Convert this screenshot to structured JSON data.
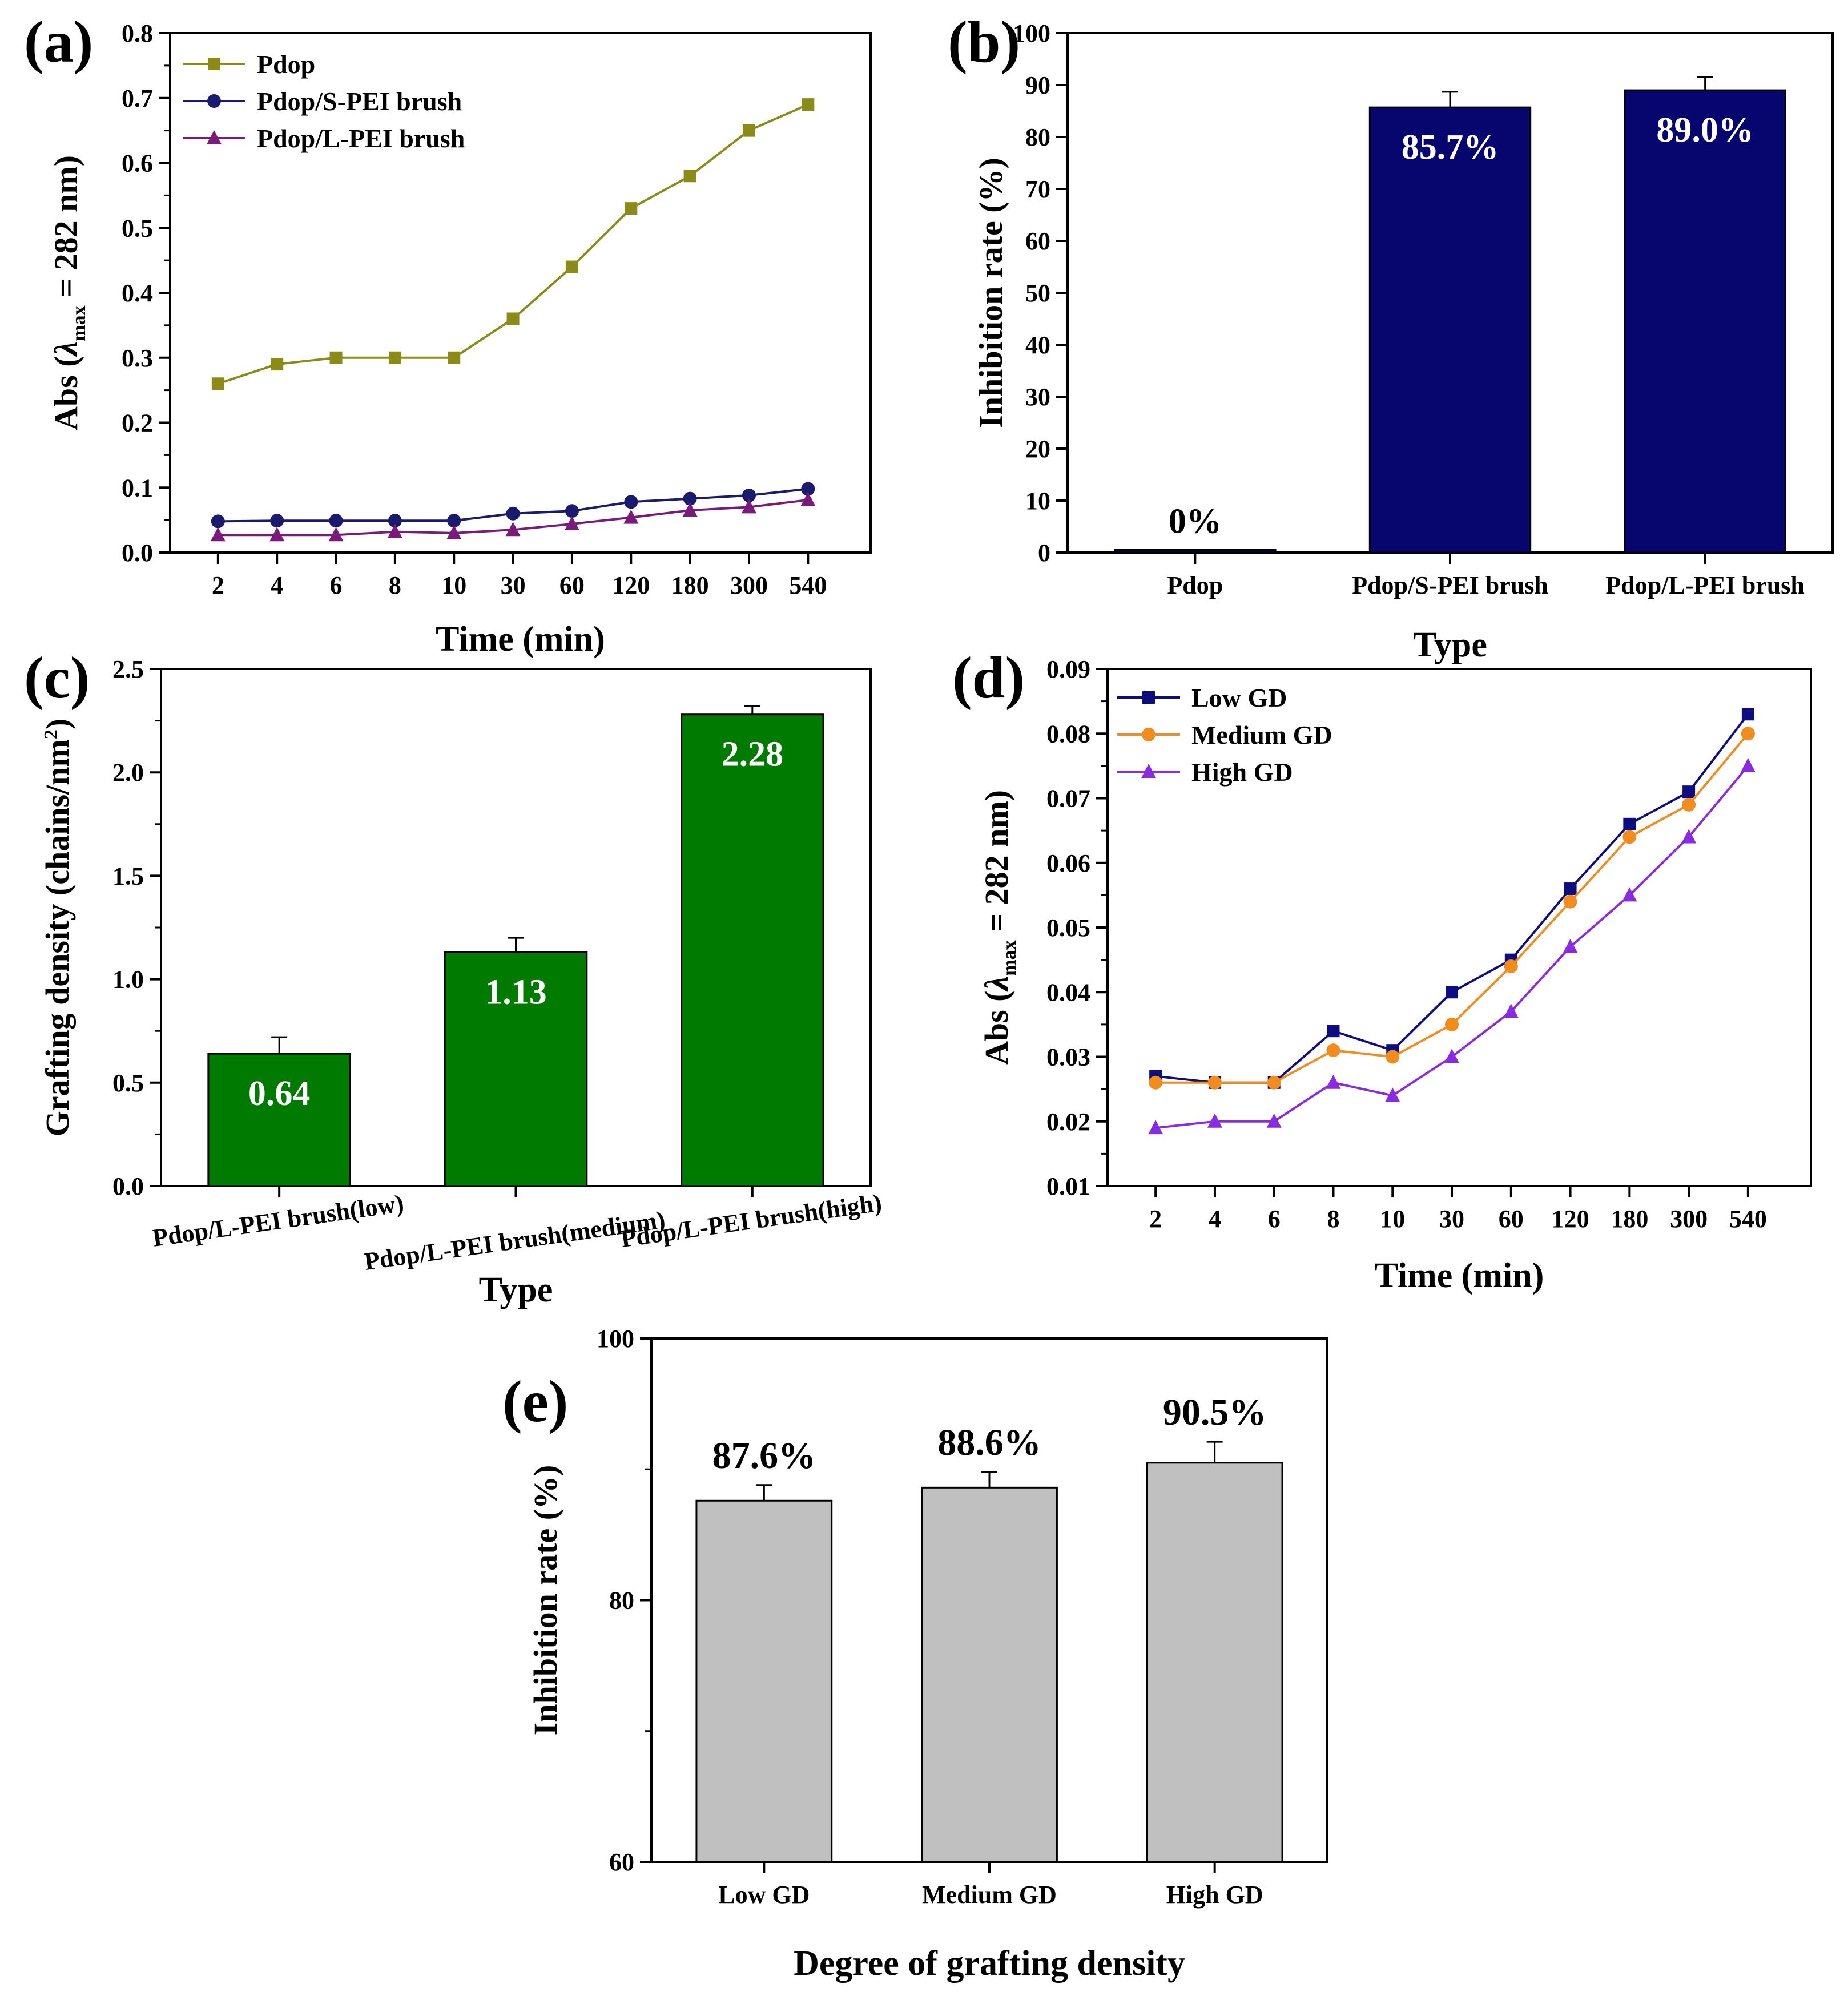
{
  "chart_data": [
    {
      "id": "a",
      "panel_label": "(a)",
      "type": "line",
      "title": "",
      "xlabel": "Time (min)",
      "ylabel_prefix": "Abs (",
      "ylabel_lambda": "λ",
      "ylabel_sub": "max",
      "ylabel_suffix": " = 282 nm)",
      "categories": [
        "2",
        "4",
        "6",
        "8",
        "10",
        "30",
        "60",
        "120",
        "180",
        "300",
        "540"
      ],
      "ylim": [
        0,
        0.8
      ],
      "yticks": [
        "0.0",
        "0.1",
        "0.2",
        "0.3",
        "0.4",
        "0.5",
        "0.6",
        "0.7",
        "0.8"
      ],
      "legend_position": "top-left",
      "series": [
        {
          "name": "Pdop",
          "marker": "square",
          "color": "#8b8b1a",
          "values": [
            0.26,
            0.29,
            0.3,
            0.3,
            0.3,
            0.36,
            0.44,
            0.53,
            0.58,
            0.65,
            0.69
          ]
        },
        {
          "name": "Pdop/S-PEI brush",
          "marker": "circle",
          "color": "#1a1a6e",
          "values": [
            0.048,
            0.049,
            0.049,
            0.049,
            0.049,
            0.06,
            0.064,
            0.078,
            0.083,
            0.088,
            0.098
          ]
        },
        {
          "name": "Pdop/L-PEI brush",
          "marker": "triangle",
          "color": "#7a1a7a",
          "values": [
            0.027,
            0.027,
            0.027,
            0.032,
            0.03,
            0.035,
            0.044,
            0.054,
            0.065,
            0.07,
            0.081
          ]
        }
      ]
    },
    {
      "id": "b",
      "panel_label": "(b)",
      "type": "bar",
      "title": "",
      "xlabel": "Type",
      "ylabel": "Inhibition rate (%)",
      "categories": [
        "Pdop",
        "Pdop/S-PEI brush",
        "Pdop/L-PEI brush"
      ],
      "values": [
        0.5,
        85.7,
        89.0
      ],
      "errors": [
        0,
        3.0,
        2.5
      ],
      "labels": [
        "0%",
        "85.7%",
        "89.0%"
      ],
      "ylim": [
        0,
        100
      ],
      "yticks": [
        "0",
        "10",
        "20",
        "30",
        "40",
        "50",
        "60",
        "70",
        "80",
        "90",
        "100"
      ],
      "bar_color": "#06066e"
    },
    {
      "id": "c",
      "panel_label": "(c)",
      "type": "bar",
      "title": "",
      "xlabel": "Type",
      "ylabel_prefix": "Grafting density (chains/nm",
      "ylabel_sup": "2",
      "ylabel_suffix": ")",
      "categories": [
        "Pdop/L-PEI brush(low)",
        "Pdop/L-PEI brush(medium)",
        "Pdop/L-PEI brush(high)"
      ],
      "values": [
        0.64,
        1.13,
        2.28
      ],
      "errors": [
        0.08,
        0.07,
        0.04
      ],
      "labels": [
        "0.64",
        "1.13",
        "2.28"
      ],
      "ylim": [
        0,
        2.5
      ],
      "yticks": [
        "0.0",
        "0.5",
        "1.0",
        "1.5",
        "2.0",
        "2.5"
      ],
      "bar_color": "#007a00"
    },
    {
      "id": "d",
      "panel_label": "(d)",
      "type": "line",
      "title": "",
      "xlabel": "Time (min)",
      "ylabel_prefix": "Abs (",
      "ylabel_lambda": "λ",
      "ylabel_sub": "max",
      "ylabel_suffix": " = 282 nm)",
      "categories": [
        "2",
        "4",
        "6",
        "8",
        "10",
        "30",
        "60",
        "120",
        "180",
        "300",
        "540"
      ],
      "ylim": [
        0.01,
        0.09
      ],
      "yticks": [
        "0.01",
        "0.02",
        "0.03",
        "0.04",
        "0.05",
        "0.06",
        "0.07",
        "0.08",
        "0.09"
      ],
      "legend_position": "top-left",
      "series": [
        {
          "name": "Low GD",
          "marker": "square",
          "color": "#0d0d80",
          "values": [
            0.027,
            0.026,
            0.026,
            0.034,
            0.031,
            0.04,
            0.045,
            0.056,
            0.066,
            0.071,
            0.083
          ]
        },
        {
          "name": "Medium GD",
          "marker": "circle",
          "color": "#f28c1e",
          "values": [
            0.026,
            0.026,
            0.026,
            0.031,
            0.03,
            0.035,
            0.044,
            0.054,
            0.064,
            0.069,
            0.08
          ]
        },
        {
          "name": "High GD",
          "marker": "triangle",
          "color": "#8a2be2",
          "values": [
            0.019,
            0.02,
            0.02,
            0.026,
            0.024,
            0.03,
            0.037,
            0.047,
            0.055,
            0.064,
            0.075
          ]
        }
      ]
    },
    {
      "id": "e",
      "panel_label": "(e)",
      "type": "bar",
      "title": "",
      "xlabel": "Degree of grafting density",
      "ylabel": "Inhibition rate (%)",
      "categories": [
        "Low GD",
        "Medium GD",
        "High GD"
      ],
      "values": [
        87.6,
        88.6,
        90.5
      ],
      "errors": [
        1.2,
        1.2,
        1.6
      ],
      "labels": [
        "87.6%",
        "88.6%",
        "90.5%"
      ],
      "ylim": [
        60,
        100
      ],
      "yticks": [
        "60",
        "80",
        "100"
      ],
      "bar_color": "#c0c0c0"
    }
  ]
}
